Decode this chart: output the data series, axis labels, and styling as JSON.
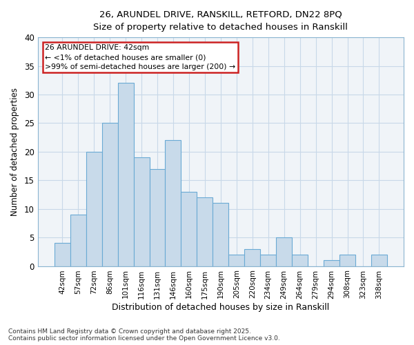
{
  "title_line1": "26, ARUNDEL DRIVE, RANSKILL, RETFORD, DN22 8PQ",
  "title_line2": "Size of property relative to detached houses in Ranskill",
  "xlabel": "Distribution of detached houses by size in Ranskill",
  "ylabel": "Number of detached properties",
  "bar_labels": [
    "42sqm",
    "57sqm",
    "72sqm",
    "86sqm",
    "101sqm",
    "116sqm",
    "131sqm",
    "146sqm",
    "160sqm",
    "175sqm",
    "190sqm",
    "205sqm",
    "220sqm",
    "234sqm",
    "249sqm",
    "264sqm",
    "279sqm",
    "294sqm",
    "308sqm",
    "323sqm",
    "338sqm"
  ],
  "bar_values": [
    4,
    9,
    20,
    25,
    32,
    19,
    17,
    22,
    13,
    12,
    11,
    2,
    3,
    2,
    5,
    2,
    0,
    1,
    2,
    0,
    2
  ],
  "bar_color": "#c8daea",
  "bar_edge_color": "#6aaad4",
  "annotation_text": "26 ARUNDEL DRIVE: 42sqm\n← <1% of detached houses are smaller (0)\n>99% of semi-detached houses are larger (200) →",
  "annotation_box_facecolor": "#ffffff",
  "annotation_box_edgecolor": "#cc2222",
  "footer_text": "Contains HM Land Registry data © Crown copyright and database right 2025.\nContains public sector information licensed under the Open Government Licence v3.0.",
  "ylim": [
    0,
    40
  ],
  "yticks": [
    0,
    5,
    10,
    15,
    20,
    25,
    30,
    35,
    40
  ],
  "grid_color": "#c8d8e8",
  "bg_color": "#f0f4f8",
  "fig_bg_color": "#ffffff",
  "spine_color": "#8ab4d0"
}
